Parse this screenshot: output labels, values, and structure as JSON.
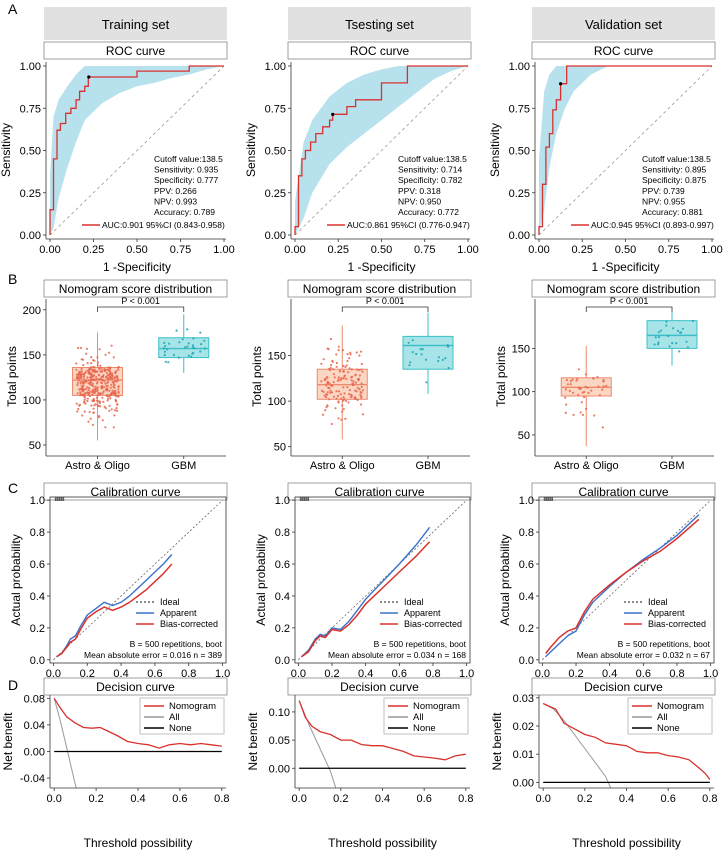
{
  "colors": {
    "roc_line": "#d9322e",
    "roc_band": "#aadcea",
    "strip_bg": "#e1e1e1",
    "astro_fill": "#fbd6c3",
    "astro_line": "#ec8a6e",
    "astro_dot": "#e8664c",
    "gbm_fill": "#a7e4e8",
    "gbm_line": "#3bbfc8",
    "gbm_dot": "#1aa6b3",
    "apparent": "#3a72c9",
    "bias": "#d9322e",
    "ideal": "#666666",
    "nomogram": "#d9322e",
    "all": "#999999",
    "none": "#000000"
  },
  "panel_letters": [
    "A",
    "B",
    "C",
    "D"
  ],
  "column_titles": [
    "Training set",
    "Tsesting set",
    "Validation set"
  ],
  "chart_data": [
    {
      "type": "line",
      "kind": "roc",
      "dataset": "Training set",
      "title": "ROC curve",
      "xlabel": "1 -Specificity",
      "ylabel": "Sensitivity",
      "xlim": [
        0,
        1
      ],
      "ylim": [
        0,
        1
      ],
      "xticks": [
        "0.00",
        "0.25",
        "0.50",
        "0.75",
        "1.00"
      ],
      "yticks": [
        "0.00",
        "0.25",
        "0.50",
        "0.75",
        "1.00"
      ],
      "roc_x": [
        0,
        0,
        0.02,
        0.02,
        0.04,
        0.04,
        0.06,
        0.06,
        0.09,
        0.09,
        0.12,
        0.12,
        0.15,
        0.15,
        0.17,
        0.17,
        0.2,
        0.2,
        0.22,
        0.22,
        0.5,
        0.5,
        0.8,
        0.8,
        1
      ],
      "roc_y": [
        0,
        0.15,
        0.15,
        0.45,
        0.45,
        0.62,
        0.62,
        0.66,
        0.66,
        0.72,
        0.72,
        0.75,
        0.75,
        0.8,
        0.8,
        0.85,
        0.85,
        0.88,
        0.88,
        0.935,
        0.935,
        0.97,
        0.97,
        1,
        1
      ],
      "band_x": [
        0,
        0.02,
        0.05,
        0.1,
        0.15,
        0.2,
        0.3,
        0.4,
        0.5,
        0.6,
        0.7,
        0.8,
        0.9,
        1
      ],
      "band_lo": [
        0,
        0.04,
        0.22,
        0.4,
        0.55,
        0.68,
        0.78,
        0.84,
        0.88,
        0.9,
        0.93,
        0.95,
        0.98,
        1
      ],
      "band_hi": [
        0.35,
        0.7,
        0.8,
        0.88,
        0.95,
        1,
        1,
        1,
        1,
        1,
        1,
        1,
        1,
        1
      ],
      "cutoff_point": [
        0.223,
        0.935
      ],
      "stats": [
        "Cutoff value:138.5",
        "Sensitivity: 0.935",
        "Specificity: 0.777",
        "PPV: 0.266",
        "NPV: 0.993",
        "Accuracy: 0.789"
      ],
      "legend": "AUC:0.901 95%CI (0.843-0.958)"
    },
    {
      "type": "line",
      "kind": "roc",
      "dataset": "Tsesting set",
      "title": "ROC curve",
      "xlabel": "1 -Specificity",
      "ylabel": "Sensitivity",
      "xlim": [
        0,
        1
      ],
      "ylim": [
        0,
        1
      ],
      "xticks": [
        "0.00",
        "0.25",
        "0.50",
        "0.75",
        "1.00"
      ],
      "yticks": [
        "0.00",
        "0.25",
        "0.50",
        "0.75",
        "1.00"
      ],
      "roc_x": [
        0,
        0,
        0.02,
        0.02,
        0.04,
        0.04,
        0.06,
        0.06,
        0.09,
        0.09,
        0.12,
        0.12,
        0.16,
        0.16,
        0.2,
        0.2,
        0.218,
        0.218,
        0.3,
        0.3,
        0.35,
        0.35,
        0.5,
        0.5,
        0.65,
        0.65,
        1
      ],
      "roc_y": [
        0,
        0.05,
        0.05,
        0.35,
        0.35,
        0.45,
        0.45,
        0.5,
        0.5,
        0.55,
        0.55,
        0.6,
        0.6,
        0.64,
        0.64,
        0.68,
        0.68,
        0.714,
        0.714,
        0.76,
        0.76,
        0.8,
        0.8,
        0.9,
        0.9,
        1,
        1
      ],
      "band_x": [
        0,
        0.05,
        0.1,
        0.2,
        0.3,
        0.4,
        0.5,
        0.6,
        0.7,
        0.8,
        0.9,
        1
      ],
      "band_lo": [
        0,
        0.1,
        0.25,
        0.42,
        0.52,
        0.6,
        0.68,
        0.76,
        0.84,
        0.92,
        0.97,
        1
      ],
      "band_hi": [
        0.2,
        0.55,
        0.68,
        0.82,
        0.9,
        0.95,
        0.98,
        1,
        1,
        1,
        1,
        1
      ],
      "cutoff_point": [
        0.218,
        0.714
      ],
      "stats": [
        "Cutoff value:138.5",
        "Sensitivity: 0.714",
        "Specificity: 0.782",
        "PPV: 0.318",
        "NPV: 0.950",
        "Accuracy: 0.772"
      ],
      "legend": "AUC:0.861 95%CI (0.776-0.947)"
    },
    {
      "type": "line",
      "kind": "roc",
      "dataset": "Validation set",
      "title": "ROC curve",
      "xlabel": "1 -Specificity",
      "ylabel": "Sensitivity",
      "xlim": [
        0,
        1
      ],
      "ylim": [
        0,
        1
      ],
      "xticks": [
        "0.00",
        "0.25",
        "0.50",
        "0.75",
        "1.00"
      ],
      "yticks": [
        "0.00",
        "0.25",
        "0.50",
        "0.75",
        "1.00"
      ],
      "roc_x": [
        0,
        0,
        0.02,
        0.02,
        0.04,
        0.04,
        0.06,
        0.06,
        0.08,
        0.08,
        0.1,
        0.1,
        0.125,
        0.125,
        0.16,
        0.16,
        0.33,
        0.33,
        1
      ],
      "roc_y": [
        0,
        0.05,
        0.05,
        0.3,
        0.3,
        0.52,
        0.52,
        0.6,
        0.6,
        0.74,
        0.74,
        0.8,
        0.8,
        0.895,
        0.895,
        1,
        1,
        1,
        1
      ],
      "band_x": [
        0,
        0.03,
        0.06,
        0.1,
        0.15,
        0.2,
        0.3,
        0.4,
        1
      ],
      "band_lo": [
        0,
        0.15,
        0.4,
        0.6,
        0.75,
        0.85,
        0.95,
        1,
        1
      ],
      "band_hi": [
        0.45,
        0.85,
        0.95,
        1,
        1,
        1,
        1,
        1,
        1
      ],
      "cutoff_point": [
        0.125,
        0.895
      ],
      "stats": [
        "Cutoff value:138.5",
        "Sensitivity: 0.895",
        "Specificity: 0.875",
        "PPV: 0.739",
        "NPV: 0.955",
        "Accuracy: 0.881"
      ],
      "legend": "AUC:0.945 95%CI (0.893-0.997)"
    },
    {
      "type": "box",
      "dataset": "Training set",
      "title": "Nomogram score distribution",
      "ylabel": "Total points",
      "categories": [
        "Astro & Oligo",
        "GBM"
      ],
      "ylim": [
        40,
        212
      ],
      "yticks": [
        50,
        100,
        150,
        200
      ],
      "boxes": [
        {
          "q1": 105,
          "median": 122,
          "q3": 136,
          "whisker_lo": 55,
          "whisker_hi": 175,
          "n": 360,
          "seed": 11
        },
        {
          "q1": 147,
          "median": 157,
          "q3": 169,
          "whisker_lo": 130,
          "whisker_hi": 195,
          "n": 31,
          "seed": 17
        }
      ],
      "pvalue": "P < 0.001"
    },
    {
      "type": "box",
      "dataset": "Tsesting set",
      "title": "Nomogram score distribution",
      "ylabel": "Total points",
      "categories": [
        "Astro & Oligo",
        "GBM"
      ],
      "ylim": [
        42,
        212
      ],
      "yticks": [
        50,
        100,
        150
      ],
      "boxes": [
        {
          "q1": 102,
          "median": 118,
          "q3": 135,
          "whisker_lo": 58,
          "whisker_hi": 183,
          "n": 150,
          "seed": 23
        },
        {
          "q1": 135,
          "median": 161,
          "q3": 171,
          "whisker_lo": 108,
          "whisker_hi": 197,
          "n": 18,
          "seed": 29
        }
      ],
      "pvalue": "P < 0.001"
    },
    {
      "type": "box",
      "dataset": "Validation set",
      "title": "Nomogram score distribution",
      "ylabel": "Total points",
      "categories": [
        "Astro & Oligo",
        "GBM"
      ],
      "ylim": [
        28,
        207
      ],
      "yticks": [
        50,
        100,
        150
      ],
      "boxes": [
        {
          "q1": 95,
          "median": 105,
          "q3": 116,
          "whisker_lo": 37,
          "whisker_hi": 153,
          "n": 45,
          "seed": 31
        },
        {
          "q1": 150,
          "median": 165,
          "q3": 182,
          "whisker_lo": 130,
          "whisker_hi": 193,
          "n": 22,
          "seed": 37
        }
      ],
      "pvalue": "P < 0.001"
    },
    {
      "type": "line",
      "kind": "calibration",
      "dataset": "Training set",
      "title": "Calibration curve",
      "xlabel": "Predicted probability",
      "ylabel": "Actual probability",
      "xlim": [
        -0.02,
        1.02
      ],
      "ylim": [
        -0.02,
        1.02
      ],
      "ticks": [
        "0.0",
        "0.2",
        "0.4",
        "0.6",
        "0.8",
        "1.0"
      ],
      "apparent": {
        "x": [
          0.02,
          0.05,
          0.08,
          0.1,
          0.13,
          0.16,
          0.2,
          0.25,
          0.3,
          0.35,
          0.4,
          0.45,
          0.5,
          0.55,
          0.6,
          0.65,
          0.7
        ],
        "y": [
          0.02,
          0.04,
          0.09,
          0.13,
          0.15,
          0.21,
          0.28,
          0.32,
          0.36,
          0.34,
          0.36,
          0.4,
          0.45,
          0.5,
          0.55,
          0.6,
          0.66
        ]
      },
      "bias_corrected": {
        "x": [
          0.02,
          0.05,
          0.08,
          0.1,
          0.13,
          0.16,
          0.2,
          0.25,
          0.3,
          0.35,
          0.4,
          0.45,
          0.5,
          0.55,
          0.6,
          0.65,
          0.7
        ],
        "y": [
          0.02,
          0.04,
          0.08,
          0.11,
          0.13,
          0.19,
          0.26,
          0.3,
          0.33,
          0.31,
          0.33,
          0.36,
          0.4,
          0.44,
          0.49,
          0.54,
          0.6
        ]
      },
      "legend": [
        "Ideal",
        "Apparent",
        "Bias-corrected"
      ],
      "note": [
        "B = 500 repetitions, boot",
        "Mean absolute error = 0.016 n = 389"
      ]
    },
    {
      "type": "line",
      "kind": "calibration",
      "dataset": "Tsesting set",
      "title": "Calibration curve",
      "xlabel": "Predicted probability",
      "ylabel": "Actual probability",
      "xlim": [
        -0.02,
        1.02
      ],
      "ylim": [
        -0.02,
        1.02
      ],
      "ticks": [
        "0.0",
        "0.2",
        "0.4",
        "0.6",
        "0.8",
        "1.0"
      ],
      "apparent": {
        "x": [
          0.02,
          0.06,
          0.1,
          0.13,
          0.16,
          0.2,
          0.25,
          0.3,
          0.35,
          0.4,
          0.5,
          0.6,
          0.7,
          0.78
        ],
        "y": [
          0.02,
          0.06,
          0.13,
          0.16,
          0.15,
          0.2,
          0.19,
          0.24,
          0.31,
          0.38,
          0.49,
          0.6,
          0.72,
          0.83
        ]
      },
      "bias_corrected": {
        "x": [
          0.02,
          0.06,
          0.1,
          0.13,
          0.16,
          0.2,
          0.25,
          0.3,
          0.35,
          0.4,
          0.5,
          0.6,
          0.7,
          0.78
        ],
        "y": [
          0.02,
          0.05,
          0.12,
          0.15,
          0.14,
          0.19,
          0.18,
          0.22,
          0.28,
          0.35,
          0.45,
          0.55,
          0.65,
          0.74
        ]
      },
      "legend": [
        "Ideal",
        "Apparent",
        "Bias-corrected"
      ],
      "note": [
        "B = 500 repetitions, boot",
        "Mean absolute error = 0.034 n = 168"
      ]
    },
    {
      "type": "line",
      "kind": "calibration",
      "dataset": "Validation set",
      "title": "Calibration curve",
      "xlabel": "Predicted probability",
      "ylabel": "Actual probability",
      "xlim": [
        -0.02,
        1.02
      ],
      "ylim": [
        -0.02,
        1.02
      ],
      "ticks": [
        "0.0",
        "0.2",
        "0.4",
        "0.6",
        "0.8",
        "1.0"
      ],
      "apparent": {
        "x": [
          0.02,
          0.05,
          0.1,
          0.15,
          0.2,
          0.25,
          0.3,
          0.4,
          0.5,
          0.6,
          0.7,
          0.8,
          0.93
        ],
        "y": [
          0.02,
          0.05,
          0.1,
          0.15,
          0.18,
          0.28,
          0.36,
          0.46,
          0.55,
          0.63,
          0.7,
          0.78,
          0.91
        ]
      },
      "bias_corrected": {
        "x": [
          0.02,
          0.05,
          0.1,
          0.15,
          0.2,
          0.25,
          0.3,
          0.4,
          0.5,
          0.6,
          0.7,
          0.8,
          0.93
        ],
        "y": [
          0.04,
          0.08,
          0.14,
          0.18,
          0.2,
          0.3,
          0.38,
          0.47,
          0.55,
          0.62,
          0.68,
          0.76,
          0.88
        ]
      },
      "legend": [
        "Ideal",
        "Apparent",
        "Bias-corrected"
      ],
      "note": [
        "B = 500 repetitions, boot",
        "Mean absolute error = 0.032 n = 67"
      ]
    },
    {
      "type": "line",
      "kind": "decision",
      "dataset": "Training set",
      "title": "Decision curve",
      "xlabel": "Threshold possibility",
      "ylabel": "Net benefit",
      "xlim": [
        -0.02,
        0.82
      ],
      "ylim": [
        -0.055,
        0.085
      ],
      "xticks": [
        0,
        0.2,
        0.4,
        0.6,
        0.8
      ],
      "xtick_labels": [
        "0.0",
        "0.2",
        "0.4",
        "0.6",
        "0.8"
      ],
      "yticks": [
        -0.04,
        0,
        0.04,
        0.08
      ],
      "ytick_labels": [
        "-0.04",
        "0.00",
        "0.04",
        "0.08"
      ],
      "nomogram": {
        "x": [
          0,
          0.03,
          0.06,
          0.1,
          0.14,
          0.18,
          0.22,
          0.26,
          0.3,
          0.35,
          0.4,
          0.45,
          0.5,
          0.55,
          0.6,
          0.65,
          0.7,
          0.75,
          0.8
        ],
        "y": [
          0.08,
          0.065,
          0.052,
          0.043,
          0.036,
          0.035,
          0.036,
          0.03,
          0.024,
          0.015,
          0.012,
          0.01,
          0.005,
          0.01,
          0.012,
          0.01,
          0.012,
          0.01,
          0.008
        ]
      },
      "all": {
        "x": [
          0,
          0.03,
          0.06,
          0.09,
          0.12
        ],
        "y": [
          0.08,
          0.045,
          0.005,
          -0.035,
          -0.075
        ]
      },
      "none_y": 0,
      "legend": [
        "Nomogram",
        "All",
        "None"
      ]
    },
    {
      "type": "line",
      "kind": "decision",
      "dataset": "Tsesting set",
      "title": "Decision curve",
      "xlabel": "Threshold possibility",
      "ylabel": "Net benefit",
      "xlim": [
        -0.02,
        0.82
      ],
      "ylim": [
        -0.035,
        0.13
      ],
      "xticks": [
        0,
        0.2,
        0.4,
        0.6,
        0.8
      ],
      "xtick_labels": [
        "0.0",
        "0.2",
        "0.4",
        "0.6",
        "0.8"
      ],
      "yticks": [
        0,
        0.05,
        0.1
      ],
      "ytick_labels": [
        "0.00",
        "0.05",
        "0.10"
      ],
      "nomogram": {
        "x": [
          0,
          0.03,
          0.06,
          0.1,
          0.15,
          0.2,
          0.25,
          0.3,
          0.35,
          0.4,
          0.45,
          0.5,
          0.55,
          0.6,
          0.65,
          0.7,
          0.75,
          0.8
        ],
        "y": [
          0.12,
          0.09,
          0.075,
          0.065,
          0.06,
          0.05,
          0.05,
          0.042,
          0.04,
          0.04,
          0.035,
          0.03,
          0.022,
          0.02,
          0.018,
          0.015,
          0.022,
          0.025
        ]
      },
      "all": {
        "x": [
          0,
          0.05,
          0.1,
          0.15,
          0.18
        ],
        "y": [
          0.12,
          0.075,
          0.035,
          -0.005,
          -0.04
        ]
      },
      "none_y": 0,
      "legend": [
        "Nomogram",
        "All",
        "None"
      ]
    },
    {
      "type": "line",
      "kind": "decision",
      "dataset": "Validation set",
      "title": "Decision curve",
      "xlabel": "Threshold possibility",
      "ylabel": "Net benefit",
      "xlim": [
        -0.02,
        0.82
      ],
      "ylim": [
        -0.002,
        0.031
      ],
      "xticks": [
        0,
        0.2,
        0.4,
        0.6,
        0.8
      ],
      "xtick_labels": [
        "0.0",
        "0.2",
        "0.4",
        "0.6",
        "0.8"
      ],
      "yticks": [
        0,
        0.01,
        0.02,
        0.03
      ],
      "ytick_labels": [
        "0.00",
        "0.01",
        "0.02",
        "0.03"
      ],
      "nomogram": {
        "x": [
          0,
          0.03,
          0.06,
          0.1,
          0.15,
          0.2,
          0.25,
          0.3,
          0.35,
          0.4,
          0.45,
          0.5,
          0.55,
          0.6,
          0.65,
          0.7,
          0.75,
          0.78,
          0.8
        ],
        "y": [
          0.028,
          0.027,
          0.026,
          0.021,
          0.019,
          0.017,
          0.016,
          0.014,
          0.0135,
          0.013,
          0.011,
          0.0105,
          0.0105,
          0.0095,
          0.009,
          0.008,
          0.005,
          0.003,
          0.001
        ]
      },
      "all": {
        "x": [
          0,
          0.05,
          0.1,
          0.15,
          0.2,
          0.25,
          0.3,
          0.33
        ],
        "y": [
          0.028,
          0.026,
          0.022,
          0.017,
          0.012,
          0.007,
          0.002,
          -0.003
        ]
      },
      "none_y": 0,
      "legend": [
        "Nomogram",
        "All",
        "None"
      ]
    }
  ]
}
